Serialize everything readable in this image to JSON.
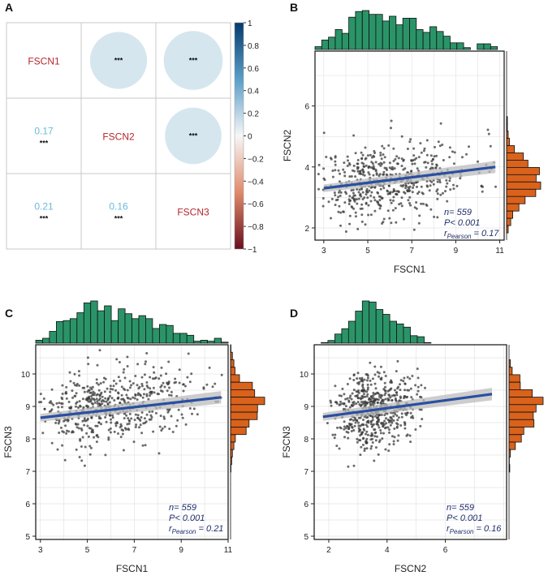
{
  "colors": {
    "hist_x": "#2a9468",
    "hist_y": "#d9621c",
    "fit": "#2a4fa0",
    "ribbon": "#bcbcbc",
    "points": "#3a3a3a",
    "stats": "#1f2d6b",
    "gene_label": "#b5262c",
    "corr_value": "#6bb9dd",
    "circle": "#d5e6ee",
    "grid": "#e4e4e4"
  },
  "stat_labels": {
    "n_prefix": "n= ",
    "p_text": "P< 0.001",
    "r_prefix": "r",
    "r_sub": "Pearson",
    "r_mid": " = "
  },
  "panel_a": {
    "label": "A",
    "genes": [
      "FSCN1",
      "FSCN2",
      "FSCN3"
    ],
    "significance": "***",
    "lower_values": [
      {
        "row": 1,
        "col": 0,
        "text": "0.17"
      },
      {
        "row": 2,
        "col": 0,
        "text": "0.21"
      },
      {
        "row": 2,
        "col": 1,
        "text": "0.16"
      }
    ],
    "upper_cells": [
      {
        "row": 0,
        "col": 1,
        "r": 0.17
      },
      {
        "row": 0,
        "col": 2,
        "r": 0.21
      },
      {
        "row": 1,
        "col": 2,
        "r": 0.16
      }
    ],
    "colorbar": {
      "min": -1,
      "max": 1,
      "ticks": [
        "1",
        "0.8",
        "0.6",
        "0.4",
        "0.2",
        "0",
        "−0.2",
        "−0.4",
        "−0.6",
        "−0.8",
        "−1"
      ]
    }
  },
  "chart_data": [
    {
      "type": "scatter",
      "id": "B",
      "label": "B",
      "xlabel": "FSCN1",
      "ylabel": "FSCN2",
      "xlim": [
        2.6,
        11.2
      ],
      "ylim": [
        1.6,
        7.8
      ],
      "xticks": [
        "3",
        "5",
        "7",
        "9",
        "11"
      ],
      "yticks": [
        "2",
        "4",
        "6"
      ],
      "n": 559,
      "p_value": "< 0.001",
      "r": 0.17,
      "n_text": "559",
      "r_text": "0.17",
      "fit": {
        "x0": 3.0,
        "y0": 3.3,
        "x1": 10.8,
        "y1": 4.0
      },
      "dist": {
        "x_mean": 5.6,
        "x_sd": 1.45,
        "x_skew": 0.9,
        "y_mean": 3.55,
        "y_sd": 0.62,
        "seed": 11
      }
    },
    {
      "type": "scatter",
      "id": "C",
      "label": "C",
      "xlabel": "FSCN1",
      "ylabel": "FSCN3",
      "xlim": [
        2.8,
        11.0
      ],
      "ylim": [
        4.9,
        10.9
      ],
      "xticks": [
        "3",
        "5",
        "7",
        "9",
        "11"
      ],
      "yticks": [
        "5",
        "6",
        "7",
        "8",
        "9",
        "10"
      ],
      "n": 559,
      "p_value": "< 0.001",
      "r": 0.21,
      "n_text": "559",
      "r_text": "0.21",
      "fit": {
        "x0": 3.0,
        "y0": 8.65,
        "x1": 10.7,
        "y1": 9.28
      },
      "dist": {
        "x_mean": 5.6,
        "x_sd": 1.45,
        "x_skew": 0.9,
        "y_mean": 8.95,
        "y_sd": 0.58,
        "seed": 23
      }
    },
    {
      "type": "scatter",
      "id": "D",
      "label": "D",
      "xlabel": "FSCN2",
      "ylabel": "FSCN3",
      "xlim": [
        1.5,
        8.1
      ],
      "ylim": [
        4.9,
        10.9
      ],
      "xticks": [
        "2",
        "4",
        "6"
      ],
      "yticks": [
        "5",
        "6",
        "7",
        "8",
        "9",
        "10"
      ],
      "n": 559,
      "p_value": "< 0.001",
      "r": 0.16,
      "n_text": "559",
      "r_text": "0.16",
      "fit": {
        "x0": 1.8,
        "y0": 8.68,
        "x1": 7.6,
        "y1": 9.38
      },
      "dist": {
        "x_mean": 3.55,
        "x_sd": 0.62,
        "x_skew": 0.3,
        "y_mean": 8.95,
        "y_sd": 0.58,
        "seed": 37
      }
    }
  ]
}
